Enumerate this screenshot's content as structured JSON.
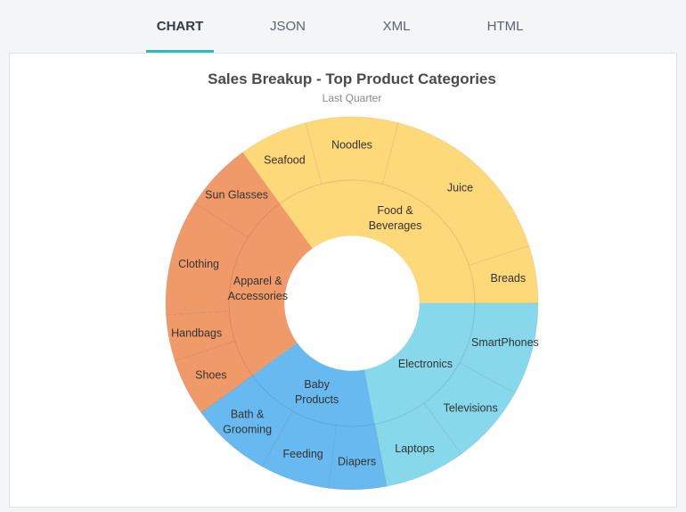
{
  "tabs": [
    {
      "label": "CHART",
      "active": true
    },
    {
      "label": "JSON",
      "active": false
    },
    {
      "label": "XML",
      "active": false
    },
    {
      "label": "HTML",
      "active": false
    }
  ],
  "chart_data": {
    "type": "sunburst",
    "title": "Sales Breakup - Top Product Categories",
    "subtitle": "Last Quarter",
    "categories": [
      {
        "name": "Food & Beverages",
        "label_lines": [
          "Food &",
          "Beverages"
        ],
        "value": 35,
        "color": "#fdd97a",
        "children": [
          {
            "name": "Breads",
            "value": 5
          },
          {
            "name": "Juice",
            "value": 16
          },
          {
            "name": "Noodles",
            "value": 8
          },
          {
            "name": "Seafood",
            "value": 6
          }
        ]
      },
      {
        "name": "Apparel & Accessories",
        "label_lines": [
          "Apparel &",
          "Accessories"
        ],
        "value": 25,
        "color": "#f09a6a",
        "children": [
          {
            "name": "Sun Glasses",
            "value": 6
          },
          {
            "name": "Clothing",
            "value": 10
          },
          {
            "name": "Handbags",
            "value": 4
          },
          {
            "name": "Shoes",
            "value": 5
          }
        ]
      },
      {
        "name": "Baby Products",
        "label_lines": [
          "Baby",
          "Products"
        ],
        "value": 18,
        "color": "#68b9f0",
        "children": [
          {
            "name": "Bath & Grooming",
            "label_lines": [
              "Bath &",
              "Grooming"
            ],
            "value": 7
          },
          {
            "name": "Feeding",
            "value": 6
          },
          {
            "name": "Diapers",
            "value": 5
          }
        ]
      },
      {
        "name": "Electronics",
        "label_lines": [
          "Electronics"
        ],
        "value": 22,
        "color": "#86d8ea",
        "children": [
          {
            "name": "Laptops",
            "value": 7
          },
          {
            "name": "Televisions",
            "value": 7
          },
          {
            "name": "SmartPhones",
            "value": 8
          }
        ]
      }
    ]
  }
}
